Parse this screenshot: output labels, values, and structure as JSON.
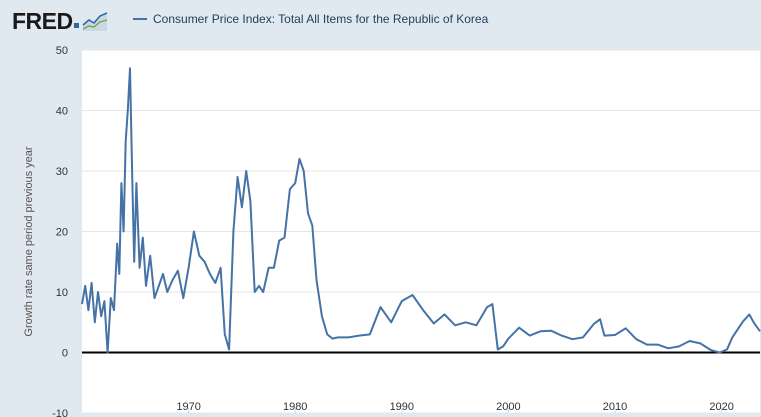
{
  "header": {
    "logo_text": "FRED",
    "series_title": "Consumer Price Index: Total All Items for the Republic of Korea"
  },
  "colors": {
    "line": "#4572a7",
    "background": "#e1e9f0",
    "plot_background": "#ffffff",
    "zero_line": "#000000"
  },
  "chart_data": {
    "type": "line",
    "title": "Consumer Price Index: Total All Items for the Republic of Korea",
    "xlabel": "",
    "ylabel": "Growth rate same period previous year",
    "ylim": [
      -10,
      50
    ],
    "xlim": [
      1960,
      2023.6
    ],
    "yticks": [
      -10,
      0,
      10,
      20,
      30,
      40,
      50
    ],
    "xticks": [
      1970,
      1980,
      1990,
      2000,
      2010,
      2020
    ],
    "grid": true,
    "legend": "top-left",
    "series": [
      {
        "name": "Consumer Price Index: Total All Items for the Republic of Korea",
        "x": [
          1960.0,
          1960.3,
          1960.6,
          1960.9,
          1961.2,
          1961.5,
          1961.8,
          1962.1,
          1962.4,
          1962.7,
          1963.0,
          1963.3,
          1963.5,
          1963.7,
          1963.9,
          1964.1,
          1964.3,
          1964.5,
          1964.7,
          1964.9,
          1965.1,
          1965.4,
          1965.7,
          1966.0,
          1966.4,
          1966.8,
          1967.2,
          1967.6,
          1968.0,
          1968.5,
          1969.0,
          1969.5,
          1970.0,
          1970.5,
          1971.0,
          1971.5,
          1972.0,
          1972.5,
          1973.0,
          1973.4,
          1973.8,
          1974.2,
          1974.6,
          1975.0,
          1975.4,
          1975.8,
          1976.2,
          1976.6,
          1977.0,
          1977.5,
          1978.0,
          1978.5,
          1979.0,
          1979.5,
          1980.0,
          1980.4,
          1980.8,
          1981.2,
          1981.6,
          1982.0,
          1982.5,
          1983.0,
          1983.5,
          1984.0,
          1985.0,
          1986.0,
          1987.0,
          1988.0,
          1989.0,
          1990.0,
          1991.0,
          1992.0,
          1993.0,
          1994.0,
          1995.0,
          1996.0,
          1997.0,
          1998.0,
          1998.5,
          1999.0,
          1999.5,
          2000.0,
          2001.0,
          2002.0,
          2003.0,
          2004.0,
          2005.0,
          2006.0,
          2007.0,
          2008.0,
          2008.6,
          2009.0,
          2010.0,
          2011.0,
          2012.0,
          2013.0,
          2014.0,
          2015.0,
          2016.0,
          2017.0,
          2018.0,
          2019.0,
          2019.8,
          2020.5,
          2021.0,
          2022.0,
          2022.6,
          2023.0,
          2023.6
        ],
        "values": [
          8.0,
          11.0,
          7.0,
          11.5,
          5.0,
          10.0,
          6.0,
          8.5,
          0.0,
          9.0,
          7.0,
          18.0,
          13.0,
          28.0,
          20.0,
          35.0,
          40.0,
          47.0,
          30.0,
          15.0,
          28.0,
          14.0,
          19.0,
          11.0,
          16.0,
          9.0,
          11.0,
          13.0,
          10.0,
          12.0,
          13.5,
          9.0,
          14.0,
          20.0,
          16.0,
          15.0,
          13.0,
          11.5,
          14.0,
          3.0,
          0.5,
          20.0,
          29.0,
          24.0,
          30.0,
          25.0,
          10.0,
          11.0,
          10.0,
          14.0,
          14.0,
          18.5,
          19.0,
          27.0,
          28.0,
          32.0,
          30.0,
          23.0,
          21.0,
          12.0,
          6.0,
          3.0,
          2.3,
          2.5,
          2.5,
          2.8,
          3.0,
          7.5,
          5.0,
          8.5,
          9.5,
          7.0,
          4.8,
          6.3,
          4.5,
          5.0,
          4.5,
          7.5,
          8.0,
          0.5,
          1.0,
          2.3,
          4.1,
          2.8,
          3.5,
          3.6,
          2.8,
          2.2,
          2.5,
          4.7,
          5.5,
          2.8,
          2.9,
          4.0,
          2.2,
          1.3,
          1.3,
          0.7,
          1.0,
          1.9,
          1.5,
          0.4,
          0.0,
          0.5,
          2.5,
          5.1,
          6.3,
          5.0,
          3.5
        ]
      }
    ]
  }
}
